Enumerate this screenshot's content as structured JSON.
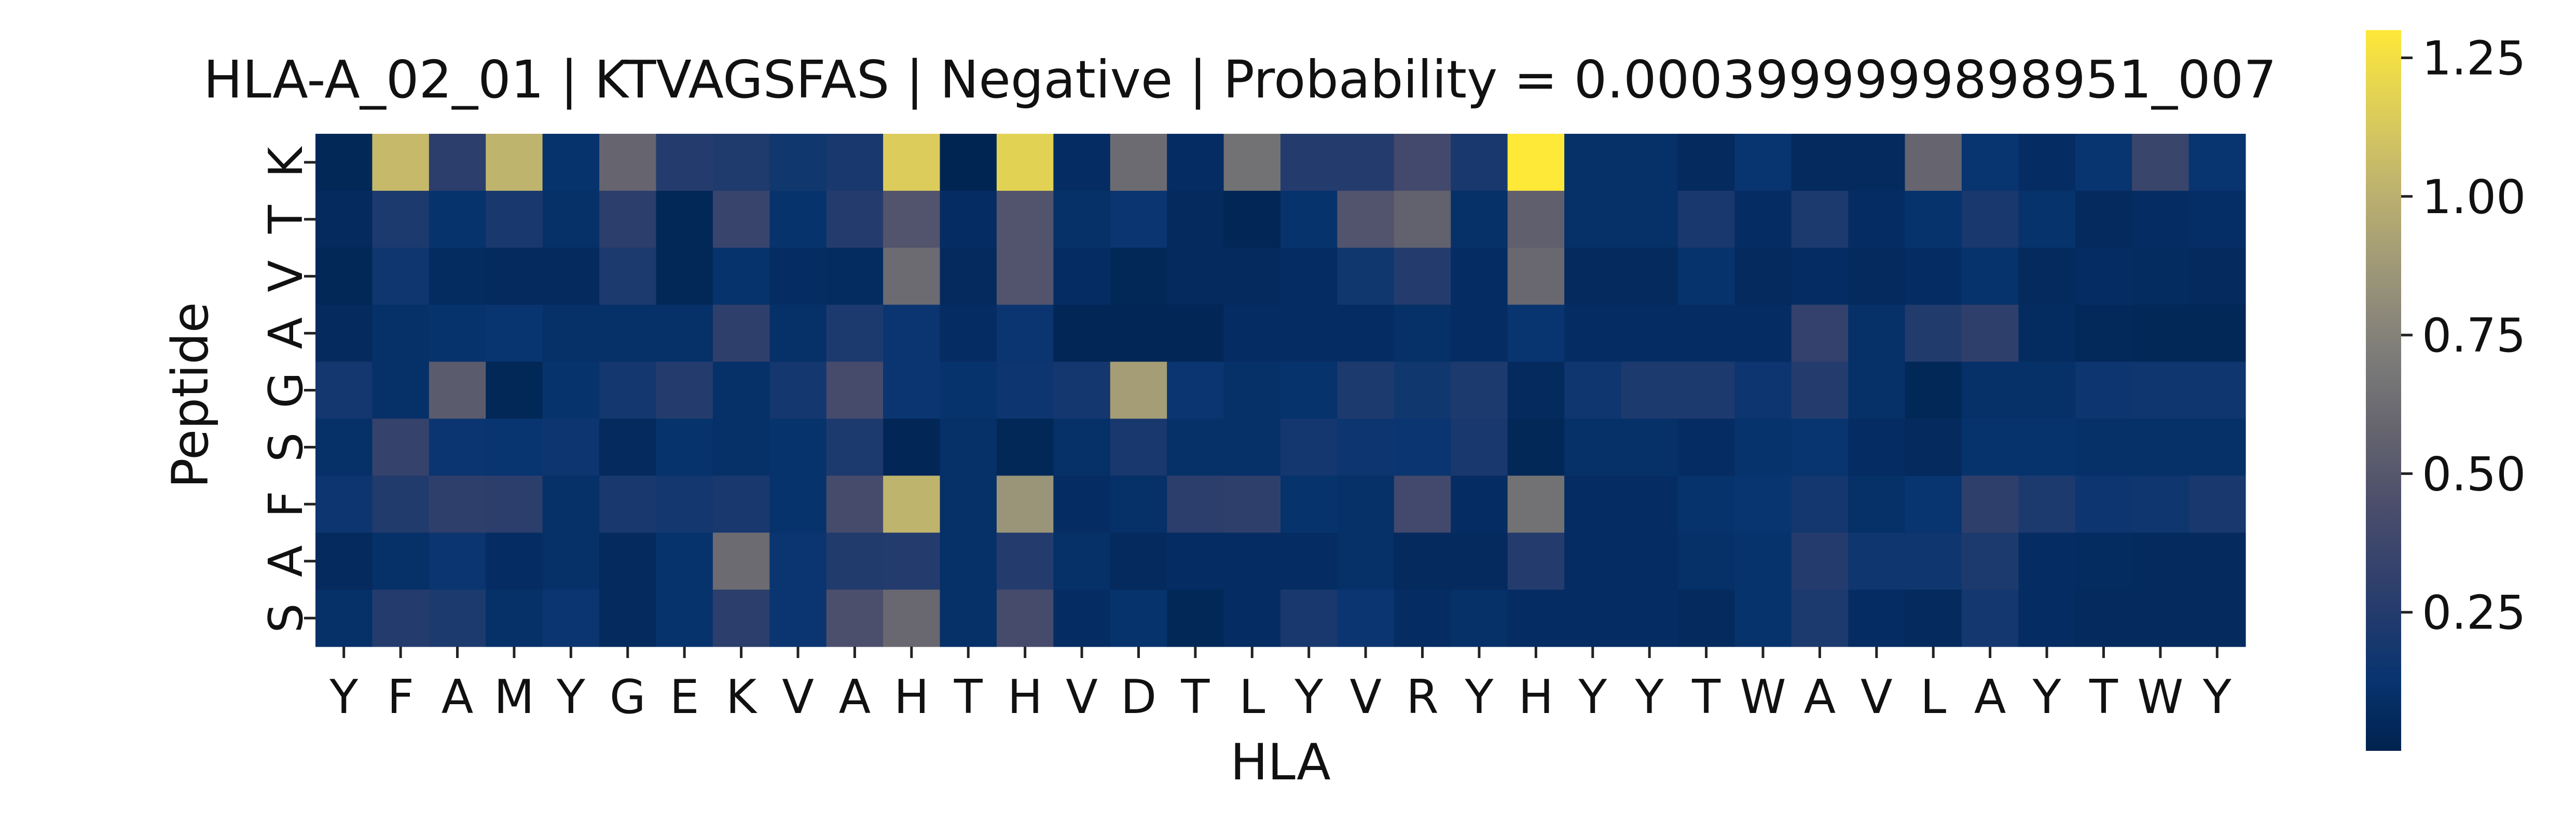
{
  "chart_data": {
    "type": "heatmap",
    "title": "HLA-A_02_01 | KTVAGSFAS | Negative | Probability = 0.0003999999898951_007",
    "xlabel": "HLA",
    "ylabel": "Peptide",
    "x_categories": [
      "Y",
      "F",
      "A",
      "M",
      "Y",
      "G",
      "E",
      "K",
      "V",
      "A",
      "H",
      "T",
      "H",
      "V",
      "D",
      "T",
      "L",
      "Y",
      "V",
      "R",
      "Y",
      "H",
      "Y",
      "Y",
      "T",
      "W",
      "A",
      "V",
      "L",
      "A",
      "Y",
      "T",
      "W",
      "Y"
    ],
    "y_categories": [
      "K",
      "T",
      "V",
      "A",
      "G",
      "S",
      "F",
      "A",
      "S"
    ],
    "colormap": "cividis",
    "colorbar": {
      "min": 0.0,
      "max": 1.3,
      "ticks": [
        0.25,
        0.5,
        0.75,
        1.0,
        1.25
      ],
      "tick_labels": [
        "0.25",
        "0.50",
        "0.75",
        "1.00",
        "1.25"
      ]
    },
    "values": [
      [
        0.04,
        1.05,
        0.28,
        1.02,
        0.12,
        0.58,
        0.25,
        0.23,
        0.17,
        0.2,
        1.15,
        0.02,
        1.18,
        0.08,
        0.62,
        0.08,
        0.65,
        0.25,
        0.25,
        0.4,
        0.2,
        1.32,
        0.1,
        0.1,
        0.06,
        0.13,
        0.06,
        0.06,
        0.58,
        0.13,
        0.08,
        0.13,
        0.36,
        0.13
      ],
      [
        0.06,
        0.22,
        0.12,
        0.2,
        0.1,
        0.28,
        0.04,
        0.35,
        0.12,
        0.25,
        0.48,
        0.08,
        0.48,
        0.1,
        0.14,
        0.06,
        0.03,
        0.12,
        0.48,
        0.56,
        0.1,
        0.55,
        0.1,
        0.1,
        0.2,
        0.08,
        0.22,
        0.08,
        0.12,
        0.2,
        0.12,
        0.06,
        0.08,
        0.09
      ],
      [
        0.04,
        0.16,
        0.07,
        0.06,
        0.06,
        0.22,
        0.04,
        0.12,
        0.08,
        0.07,
        0.62,
        0.06,
        0.48,
        0.08,
        0.04,
        0.06,
        0.06,
        0.08,
        0.17,
        0.25,
        0.08,
        0.6,
        0.06,
        0.06,
        0.12,
        0.06,
        0.08,
        0.06,
        0.08,
        0.12,
        0.06,
        0.08,
        0.07,
        0.06
      ],
      [
        0.06,
        0.1,
        0.12,
        0.13,
        0.1,
        0.1,
        0.1,
        0.3,
        0.1,
        0.22,
        0.14,
        0.08,
        0.14,
        0.03,
        0.03,
        0.03,
        0.08,
        0.08,
        0.08,
        0.1,
        0.08,
        0.13,
        0.08,
        0.08,
        0.08,
        0.08,
        0.32,
        0.1,
        0.24,
        0.3,
        0.07,
        0.05,
        0.04,
        0.04
      ],
      [
        0.18,
        0.1,
        0.52,
        0.04,
        0.12,
        0.18,
        0.25,
        0.1,
        0.18,
        0.42,
        0.14,
        0.12,
        0.15,
        0.18,
        0.9,
        0.14,
        0.1,
        0.12,
        0.22,
        0.17,
        0.22,
        0.06,
        0.16,
        0.22,
        0.22,
        0.15,
        0.25,
        0.1,
        0.04,
        0.1,
        0.1,
        0.15,
        0.16,
        0.16
      ],
      [
        0.1,
        0.33,
        0.14,
        0.13,
        0.15,
        0.06,
        0.12,
        0.1,
        0.12,
        0.22,
        0.03,
        0.1,
        0.04,
        0.1,
        0.2,
        0.1,
        0.1,
        0.18,
        0.15,
        0.14,
        0.2,
        0.04,
        0.1,
        0.1,
        0.08,
        0.12,
        0.13,
        0.08,
        0.06,
        0.12,
        0.12,
        0.1,
        0.1,
        0.1
      ],
      [
        0.15,
        0.24,
        0.3,
        0.28,
        0.1,
        0.2,
        0.18,
        0.2,
        0.12,
        0.42,
        1.02,
        0.1,
        0.85,
        0.08,
        0.1,
        0.28,
        0.3,
        0.12,
        0.1,
        0.4,
        0.08,
        0.65,
        0.08,
        0.08,
        0.12,
        0.13,
        0.18,
        0.1,
        0.13,
        0.3,
        0.22,
        0.15,
        0.16,
        0.2
      ],
      [
        0.06,
        0.1,
        0.14,
        0.08,
        0.1,
        0.06,
        0.12,
        0.62,
        0.14,
        0.24,
        0.25,
        0.1,
        0.25,
        0.1,
        0.06,
        0.08,
        0.08,
        0.08,
        0.1,
        0.06,
        0.06,
        0.25,
        0.08,
        0.08,
        0.1,
        0.12,
        0.25,
        0.16,
        0.16,
        0.22,
        0.08,
        0.07,
        0.06,
        0.06
      ],
      [
        0.1,
        0.25,
        0.22,
        0.1,
        0.14,
        0.06,
        0.12,
        0.28,
        0.14,
        0.45,
        0.6,
        0.1,
        0.42,
        0.08,
        0.12,
        0.04,
        0.08,
        0.2,
        0.14,
        0.08,
        0.1,
        0.08,
        0.08,
        0.08,
        0.06,
        0.12,
        0.22,
        0.08,
        0.06,
        0.18,
        0.08,
        0.06,
        0.06,
        0.06
      ]
    ]
  }
}
